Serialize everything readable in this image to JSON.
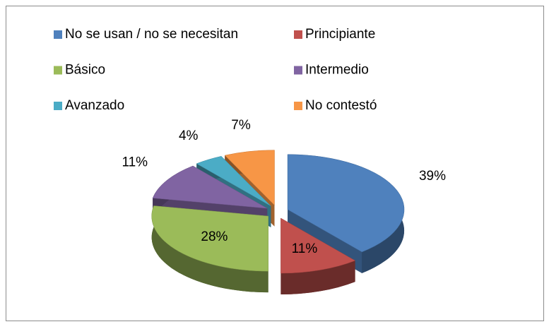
{
  "chart_data": {
    "type": "pie3d",
    "categories": [
      "No se usan / no se necesitan",
      "Principiante",
      "Básico",
      "Intermedio",
      "Avanzado",
      "No contestó"
    ],
    "values": [
      39,
      11,
      28,
      11,
      4,
      7
    ],
    "value_labels": [
      "39%",
      "11%",
      "28%",
      "11%",
      "4%",
      "7%"
    ],
    "colors": [
      "#4f81bd",
      "#c0504d",
      "#9bbb59",
      "#8064a2",
      "#4bacc6",
      "#f79646"
    ],
    "legend": "top"
  }
}
